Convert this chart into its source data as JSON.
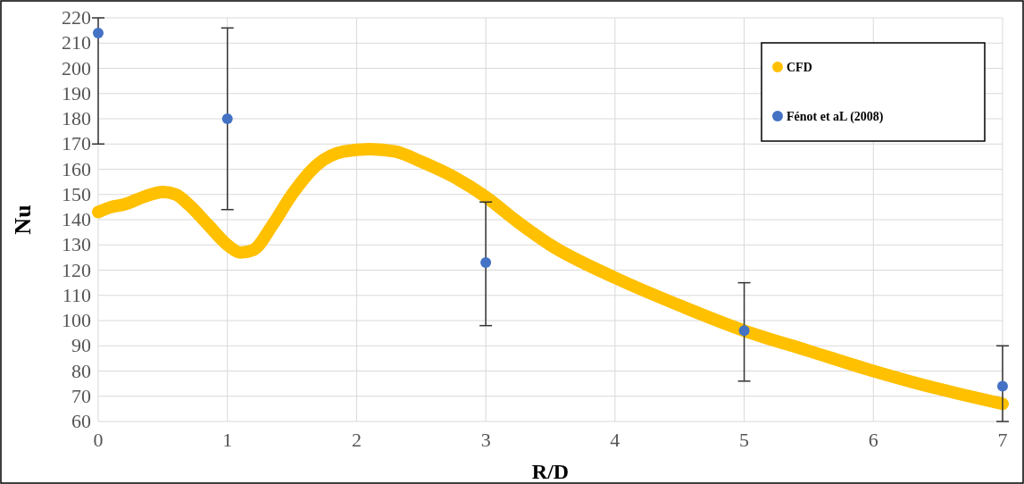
{
  "chart_data": {
    "type": "line",
    "xlabel": "R/D",
    "ylabel": "Nu",
    "xlim": [
      0,
      7
    ],
    "xticks": [
      0,
      1,
      2,
      3,
      4,
      5,
      6,
      7
    ],
    "ylim": [
      60,
      220
    ],
    "yticks": [
      60,
      70,
      80,
      90,
      100,
      110,
      120,
      130,
      140,
      150,
      160,
      170,
      180,
      190,
      200,
      210,
      220
    ],
    "grid": true,
    "legend": "top right",
    "series": [
      {
        "name": "CFD",
        "color": "#ffc000",
        "marker": "none",
        "x": [
          0,
          0.1,
          0.2,
          0.35,
          0.5,
          0.6,
          0.7,
          0.85,
          1.0,
          1.1,
          1.2,
          1.35,
          1.5,
          1.7,
          1.9,
          2.1,
          2.3,
          2.5,
          2.75,
          3.0,
          3.25,
          3.5,
          4.0,
          4.5,
          5.0,
          5.5,
          6.0,
          6.5,
          7.0
        ],
        "values": [
          143,
          145,
          146,
          149,
          151,
          150,
          146,
          138,
          130,
          127,
          128,
          138,
          150,
          162,
          167,
          168,
          167,
          163,
          157,
          149,
          139,
          130,
          117,
          106,
          96,
          88,
          80,
          73,
          67
        ]
      },
      {
        "name": "Fénot et aL (2008)",
        "type": "scatter",
        "color": "#4472c4",
        "marker": "circle",
        "x": [
          0,
          1,
          3,
          5,
          7
        ],
        "values": [
          214,
          180,
          123,
          96,
          74
        ],
        "errors": [
          [
            170,
            220
          ],
          [
            144,
            216
          ],
          [
            98,
            147
          ],
          [
            76,
            115
          ],
          [
            60,
            90
          ]
        ]
      }
    ]
  }
}
